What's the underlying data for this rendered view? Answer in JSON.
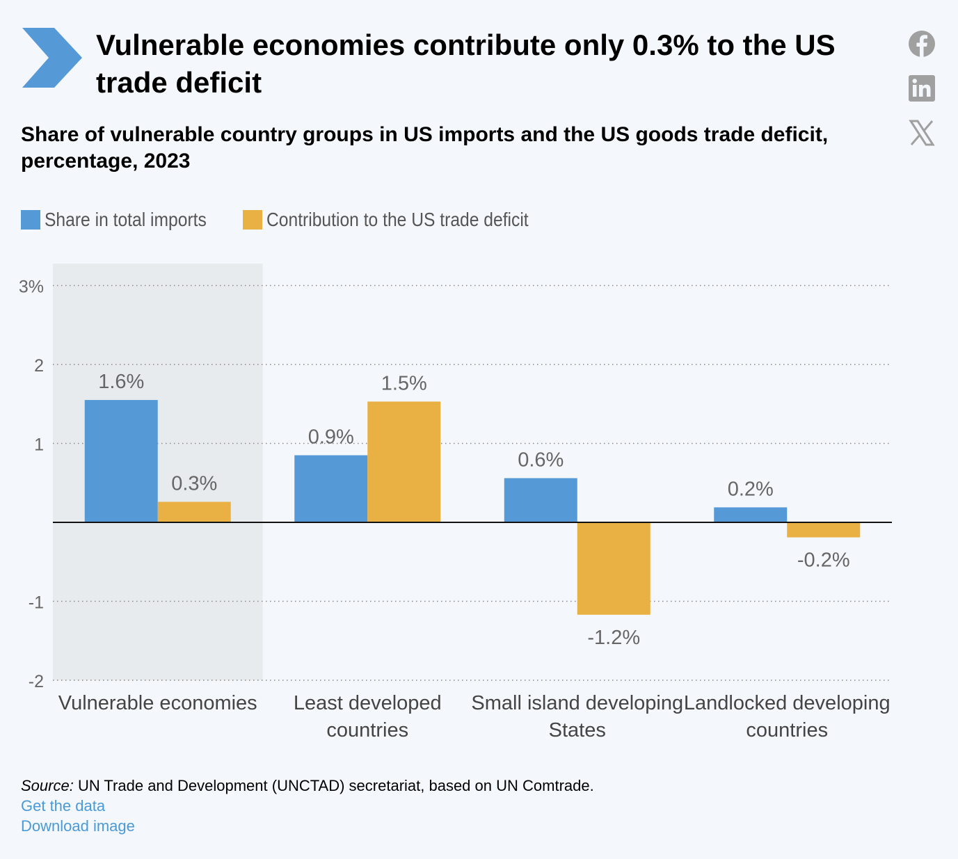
{
  "header": {
    "title": "Vulnerable economies contribute only 0.3% to the US trade deficit",
    "subtitle": "Share of vulnerable country groups in US imports and the US goods trade deficit, percentage, 2023"
  },
  "social": [
    "facebook-icon",
    "linkedin-icon",
    "x-icon"
  ],
  "legend": [
    {
      "label": "Share in total imports",
      "color": "#559ad7"
    },
    {
      "label": "Contribution to the US trade deficit",
      "color": "#e9b043"
    }
  ],
  "chart_data": {
    "type": "bar",
    "categories": [
      [
        "Vulnerable economies"
      ],
      [
        "Least developed",
        "countries"
      ],
      [
        "Small island developing",
        "States"
      ],
      [
        "Landlocked developing",
        "countries"
      ]
    ],
    "highlighted_category": "Vulnerable economies",
    "series": [
      {
        "name": "Share in total imports",
        "color": "#559ad7",
        "values": [
          1.55,
          0.85,
          0.56,
          0.19
        ],
        "labels": [
          "1.6%",
          "0.9%",
          "0.6%",
          "0.2%"
        ]
      },
      {
        "name": "Contribution to the US trade deficit",
        "color": "#e9b043",
        "values": [
          0.26,
          1.53,
          -1.17,
          -0.19
        ],
        "labels": [
          "0.3%",
          "1.5%",
          "-1.2%",
          "-0.2%"
        ]
      }
    ],
    "yticks": [
      {
        "value": 3,
        "label": "3%"
      },
      {
        "value": 2,
        "label": "2"
      },
      {
        "value": 1,
        "label": "1"
      },
      {
        "value": -1,
        "label": "-1"
      },
      {
        "value": -2,
        "label": "-2"
      }
    ],
    "ylim": [
      -2,
      3.3
    ],
    "grid": true,
    "legend_position": "top-left"
  },
  "footer": {
    "source_label": "Source:",
    "source_text": " UN Trade and Development (UNCTAD) secretariat, based on UN Comtrade.",
    "get_data": "Get the data",
    "download": "Download image"
  }
}
